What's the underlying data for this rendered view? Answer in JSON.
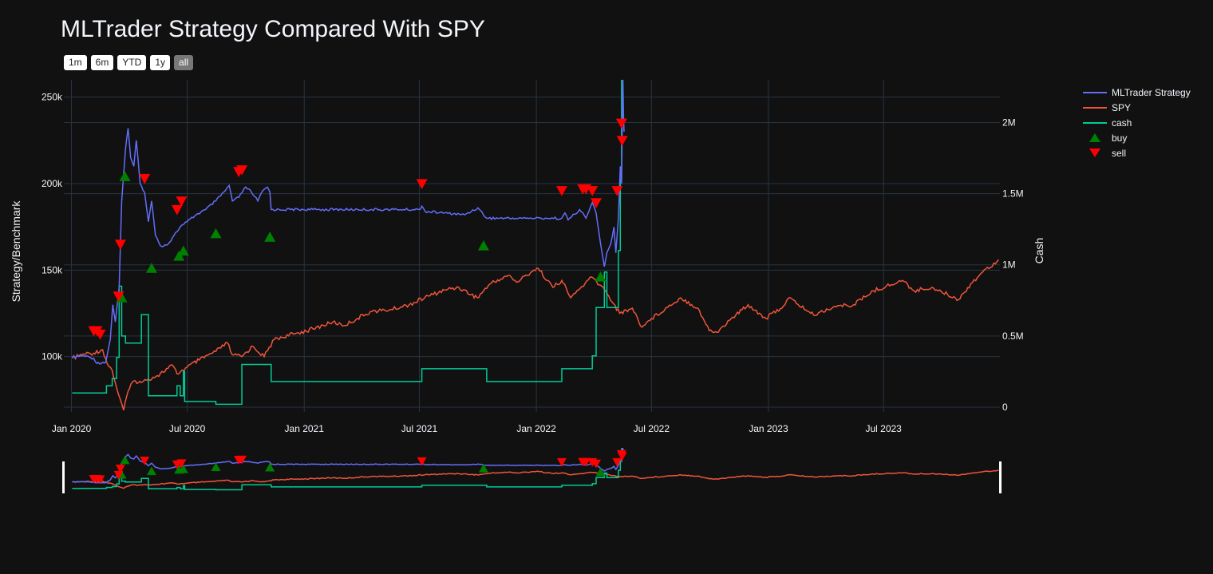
{
  "title": "MLTrader Strategy Compared With SPY",
  "range_buttons": [
    {
      "label": "1m",
      "active": false
    },
    {
      "label": "6m",
      "active": false
    },
    {
      "label": "YTD",
      "active": false
    },
    {
      "label": "1y",
      "active": false
    },
    {
      "label": "all",
      "active": true
    }
  ],
  "colors": {
    "background": "#111111",
    "grid": "#283442",
    "strategy": "#636efa",
    "spy": "#ef553b",
    "cash": "#00cc96",
    "buy": "#008000",
    "sell": "#ff0000"
  },
  "chart_data": {
    "type": "line",
    "title": "MLTrader Strategy Compared With SPY",
    "xlabel": "",
    "ylabel": "Strategy/Benchmark",
    "y2label": "Cash",
    "x_range": [
      "2019-12-20",
      "2023-12-31"
    ],
    "ylim": [
      68000,
      260000
    ],
    "y2lim": [
      0,
      2300000
    ],
    "x_ticks": [
      "Jan 2020",
      "Jul 2020",
      "Jan 2021",
      "Jul 2021",
      "Jan 2022",
      "Jul 2022",
      "Jan 2023",
      "Jul 2023"
    ],
    "x_tick_dates": [
      "2020-01-01",
      "2020-07-01",
      "2021-01-01",
      "2021-07-01",
      "2022-01-01",
      "2022-07-01",
      "2023-01-01",
      "2023-07-01"
    ],
    "y_ticks": [
      100000,
      150000,
      200000,
      250000
    ],
    "y_tick_labels": [
      "100k",
      "150k",
      "200k",
      "250k"
    ],
    "y2_ticks": [
      0,
      500000,
      1000000,
      1500000,
      2000000
    ],
    "y2_tick_labels": [
      "0",
      "0.5M",
      "1M",
      "1.5M",
      "2M"
    ],
    "grid": true,
    "legend_position": "top-right",
    "range_slider": true,
    "series": [
      {
        "name": "MLTrader Strategy",
        "axis": "y",
        "points": [
          [
            "2020-01-02",
            99500
          ],
          [
            "2020-01-20",
            100500
          ],
          [
            "2020-02-05",
            99000
          ],
          [
            "2020-02-10",
            96000
          ],
          [
            "2020-02-24",
            97000
          ],
          [
            "2020-03-02",
            110000
          ],
          [
            "2020-03-06",
            130000
          ],
          [
            "2020-03-10",
            120000
          ],
          [
            "2020-03-16",
            140000
          ],
          [
            "2020-03-20",
            190000
          ],
          [
            "2020-03-26",
            220000
          ],
          [
            "2020-03-30",
            232000
          ],
          [
            "2020-04-03",
            215000
          ],
          [
            "2020-04-08",
            210000
          ],
          [
            "2020-04-12",
            225000
          ],
          [
            "2020-04-18",
            200000
          ],
          [
            "2020-04-25",
            195000
          ],
          [
            "2020-05-01",
            178000
          ],
          [
            "2020-05-06",
            190000
          ],
          [
            "2020-05-12",
            170000
          ],
          [
            "2020-05-20",
            164000
          ],
          [
            "2020-06-01",
            165000
          ],
          [
            "2020-06-10",
            170000
          ],
          [
            "2020-06-20",
            175000
          ],
          [
            "2020-07-01",
            178000
          ],
          [
            "2020-07-15",
            182000
          ],
          [
            "2020-07-30",
            185000
          ],
          [
            "2020-08-15",
            190000
          ],
          [
            "2020-08-30",
            196000
          ],
          [
            "2020-09-05",
            199000
          ],
          [
            "2020-09-10",
            190000
          ],
          [
            "2020-09-20",
            192000
          ],
          [
            "2020-10-01",
            198000
          ],
          [
            "2020-10-10",
            195000
          ],
          [
            "2020-10-20",
            190000
          ],
          [
            "2020-10-28",
            196000
          ],
          [
            "2020-11-04",
            198000
          ],
          [
            "2020-11-08",
            195000
          ],
          [
            "2020-11-10",
            185000
          ],
          [
            "2021-01-15",
            185000
          ],
          [
            "2021-06-01",
            185000
          ],
          [
            "2021-07-01",
            185000
          ],
          [
            "2021-07-05",
            187000
          ],
          [
            "2021-07-10",
            184000
          ],
          [
            "2021-08-10",
            183000
          ],
          [
            "2021-09-10",
            182000
          ],
          [
            "2021-10-01",
            186000
          ],
          [
            "2021-10-15",
            180000
          ],
          [
            "2021-12-15",
            180000
          ],
          [
            "2022-01-15",
            180000
          ],
          [
            "2022-02-10",
            180000
          ],
          [
            "2022-02-15",
            183000
          ],
          [
            "2022-02-20",
            179000
          ],
          [
            "2022-03-10",
            185000
          ],
          [
            "2022-03-20",
            180000
          ],
          [
            "2022-03-30",
            189000
          ],
          [
            "2022-04-05",
            183000
          ],
          [
            "2022-04-12",
            165000
          ],
          [
            "2022-04-18",
            152000
          ],
          [
            "2022-04-22",
            160000
          ],
          [
            "2022-04-28",
            165000
          ],
          [
            "2022-05-03",
            175000
          ],
          [
            "2022-05-06",
            160000
          ],
          [
            "2022-05-10",
            180000
          ],
          [
            "2022-05-13",
            210000
          ],
          [
            "2022-05-15",
            200000
          ],
          [
            "2022-05-17",
            263000
          ],
          [
            "2022-05-18",
            240000
          ],
          [
            "2022-05-19",
            230000
          ]
        ]
      },
      {
        "name": "SPY",
        "axis": "y",
        "points": [
          [
            "2020-01-02",
            99000
          ],
          [
            "2020-01-20",
            101500
          ],
          [
            "2020-02-05",
            102000
          ],
          [
            "2020-02-19",
            104000
          ],
          [
            "2020-02-26",
            96000
          ],
          [
            "2020-03-05",
            92000
          ],
          [
            "2020-03-12",
            82000
          ],
          [
            "2020-03-18",
            75000
          ],
          [
            "2020-03-23",
            69000
          ],
          [
            "2020-03-30",
            80000
          ],
          [
            "2020-04-08",
            86000
          ],
          [
            "2020-04-20",
            85000
          ],
          [
            "2020-05-01",
            87000
          ],
          [
            "2020-05-15",
            89000
          ],
          [
            "2020-06-08",
            95000
          ],
          [
            "2020-06-15",
            90000
          ],
          [
            "2020-07-01",
            94000
          ],
          [
            "2020-07-20",
            98000
          ],
          [
            "2020-08-15",
            103000
          ],
          [
            "2020-09-02",
            108000
          ],
          [
            "2020-09-10",
            101000
          ],
          [
            "2020-09-25",
            100000
          ],
          [
            "2020-10-12",
            106000
          ],
          [
            "2020-10-30",
            100000
          ],
          [
            "2020-11-15",
            110000
          ],
          [
            "2020-12-15",
            113000
          ],
          [
            "2021-01-15",
            116000
          ],
          [
            "2021-02-15",
            120000
          ],
          [
            "2021-03-05",
            118000
          ],
          [
            "2021-04-15",
            126000
          ],
          [
            "2021-05-15",
            127000
          ],
          [
            "2021-06-15",
            130000
          ],
          [
            "2021-07-15",
            135000
          ],
          [
            "2021-08-15",
            139000
          ],
          [
            "2021-09-01",
            140000
          ],
          [
            "2021-09-30",
            134000
          ],
          [
            "2021-10-20",
            142000
          ],
          [
            "2021-11-18",
            147000
          ],
          [
            "2021-12-01",
            143000
          ],
          [
            "2021-12-28",
            150000
          ],
          [
            "2022-01-04",
            151000
          ],
          [
            "2022-01-27",
            140000
          ],
          [
            "2022-02-10",
            144000
          ],
          [
            "2022-02-24",
            134000
          ],
          [
            "2022-03-29",
            146000
          ],
          [
            "2022-04-20",
            138000
          ],
          [
            "2022-05-12",
            125000
          ],
          [
            "2022-06-01",
            128000
          ],
          [
            "2022-06-16",
            117000
          ],
          [
            "2022-07-01",
            122000
          ],
          [
            "2022-08-16",
            134000
          ],
          [
            "2022-09-12",
            128000
          ],
          [
            "2022-09-30",
            115000
          ],
          [
            "2022-10-12",
            114000
          ],
          [
            "2022-11-01",
            121000
          ],
          [
            "2022-11-30",
            130000
          ],
          [
            "2022-12-28",
            122000
          ],
          [
            "2023-01-27",
            130000
          ],
          [
            "2023-02-02",
            134000
          ],
          [
            "2023-03-13",
            124000
          ],
          [
            "2023-04-15",
            129000
          ],
          [
            "2023-05-15",
            130000
          ],
          [
            "2023-06-15",
            138000
          ],
          [
            "2023-07-31",
            144000
          ],
          [
            "2023-08-18",
            138000
          ],
          [
            "2023-09-15",
            140000
          ],
          [
            "2023-10-27",
            133000
          ],
          [
            "2023-11-15",
            142000
          ],
          [
            "2023-12-01",
            148000
          ],
          [
            "2023-12-29",
            156000
          ]
        ]
      },
      {
        "name": "cash",
        "axis": "y2",
        "points": [
          [
            "2020-01-02",
            100000
          ],
          [
            "2020-02-25",
            100000
          ],
          [
            "2020-02-25",
            150000
          ],
          [
            "2020-03-05",
            150000
          ],
          [
            "2020-03-05",
            200000
          ],
          [
            "2020-03-12",
            200000
          ],
          [
            "2020-03-12",
            350000
          ],
          [
            "2020-03-16",
            350000
          ],
          [
            "2020-03-16",
            850000
          ],
          [
            "2020-03-20",
            850000
          ],
          [
            "2020-03-20",
            500000
          ],
          [
            "2020-03-26",
            500000
          ],
          [
            "2020-03-26",
            450000
          ],
          [
            "2020-04-20",
            450000
          ],
          [
            "2020-04-20",
            650000
          ],
          [
            "2020-05-01",
            650000
          ],
          [
            "2020-05-01",
            80000
          ],
          [
            "2020-06-15",
            80000
          ],
          [
            "2020-06-15",
            150000
          ],
          [
            "2020-06-20",
            150000
          ],
          [
            "2020-06-20",
            80000
          ],
          [
            "2020-06-25",
            80000
          ],
          [
            "2020-06-25",
            250000
          ],
          [
            "2020-06-27",
            250000
          ],
          [
            "2020-06-27",
            40000
          ],
          [
            "2020-08-15",
            40000
          ],
          [
            "2020-08-15",
            20000
          ],
          [
            "2020-09-25",
            20000
          ],
          [
            "2020-09-25",
            300000
          ],
          [
            "2020-11-10",
            300000
          ],
          [
            "2020-11-10",
            180000
          ],
          [
            "2021-07-05",
            180000
          ],
          [
            "2021-07-05",
            270000
          ],
          [
            "2021-10-15",
            270000
          ],
          [
            "2021-10-15",
            180000
          ],
          [
            "2022-02-10",
            180000
          ],
          [
            "2022-02-10",
            270000
          ],
          [
            "2022-03-30",
            270000
          ],
          [
            "2022-03-30",
            360000
          ],
          [
            "2022-04-05",
            360000
          ],
          [
            "2022-04-05",
            700000
          ],
          [
            "2022-04-18",
            700000
          ],
          [
            "2022-04-18",
            950000
          ],
          [
            "2022-04-22",
            950000
          ],
          [
            "2022-04-22",
            700000
          ],
          [
            "2022-05-10",
            700000
          ],
          [
            "2022-05-10",
            1100000
          ],
          [
            "2022-05-13",
            1100000
          ],
          [
            "2022-05-13",
            1600000
          ],
          [
            "2022-05-15",
            1600000
          ],
          [
            "2022-05-15",
            2300000
          ],
          [
            "2022-05-17",
            2300000
          ]
        ]
      }
    ],
    "buy": [
      [
        "2020-03-20",
        134000
      ],
      [
        "2020-03-25",
        204000
      ],
      [
        "2020-05-06",
        151000
      ],
      [
        "2020-06-18",
        158000
      ],
      [
        "2020-06-25",
        161000
      ],
      [
        "2020-08-15",
        171000
      ],
      [
        "2020-11-08",
        169000
      ],
      [
        "2021-10-10",
        164000
      ],
      [
        "2022-04-12",
        146000
      ]
    ],
    "sell": [
      [
        "2020-02-05",
        115000
      ],
      [
        "2020-02-10",
        115000
      ],
      [
        "2020-02-15",
        113000
      ],
      [
        "2020-03-15",
        135000
      ],
      [
        "2020-03-18",
        165000
      ],
      [
        "2020-04-25",
        203000
      ],
      [
        "2020-06-15",
        185000
      ],
      [
        "2020-06-22",
        190000
      ],
      [
        "2020-09-20",
        207000
      ],
      [
        "2020-09-25",
        208000
      ],
      [
        "2021-07-05",
        200000
      ],
      [
        "2022-02-10",
        196000
      ],
      [
        "2022-03-15",
        197000
      ],
      [
        "2022-03-20",
        197000
      ],
      [
        "2022-03-30",
        196000
      ],
      [
        "2022-04-05",
        189000
      ],
      [
        "2022-05-08",
        196000
      ],
      [
        "2022-05-15",
        235000
      ],
      [
        "2022-05-16",
        225000
      ]
    ]
  }
}
